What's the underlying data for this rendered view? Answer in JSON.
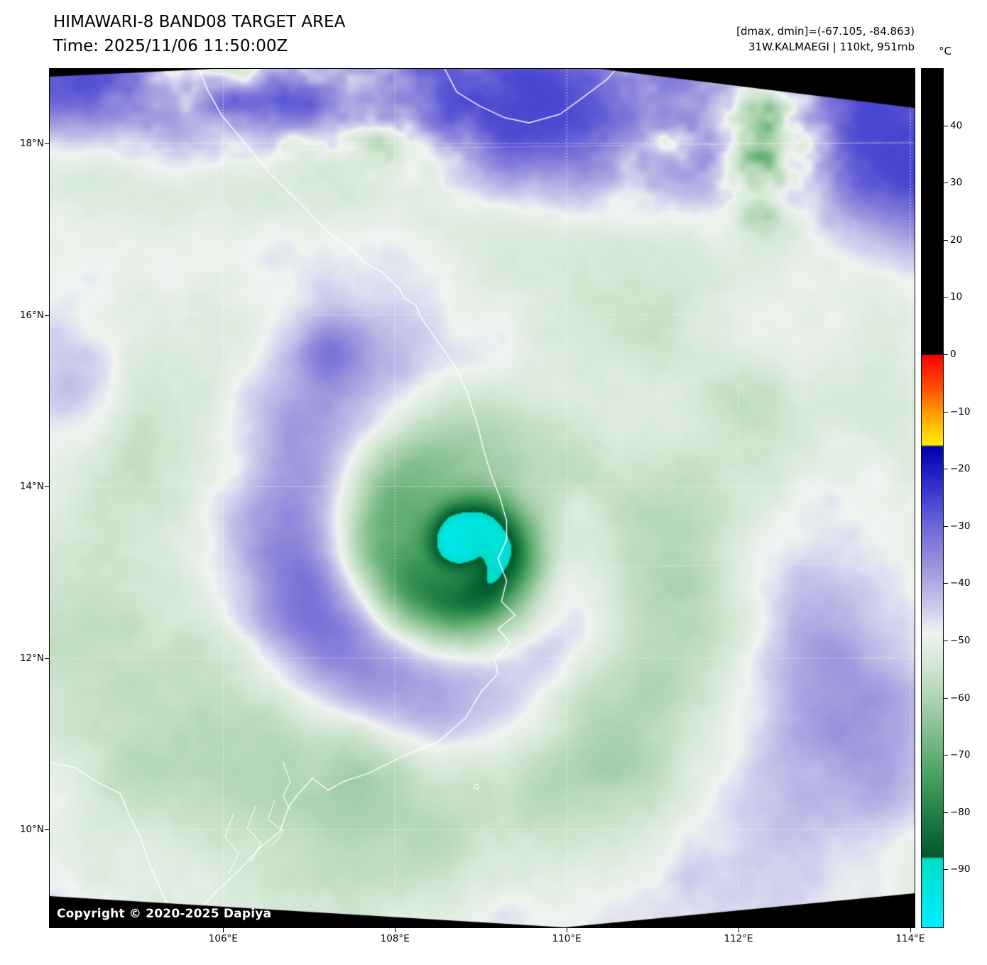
{
  "header": {
    "title": "HIMAWARI-8 BAND08 TARGET AREA",
    "time_label": "Time: 2025/11/06 11:50:00Z",
    "dminmax": "[dmax, dmin]=(-67.105, -84.863)",
    "storm": "31W.KALMAEGI | 110kt, 951mb"
  },
  "axes": {
    "lat_ticks": [
      {
        "label": "18°N",
        "value": 18
      },
      {
        "label": "16°N",
        "value": 16
      },
      {
        "label": "14°N",
        "value": 14
      },
      {
        "label": "12°N",
        "value": 12
      },
      {
        "label": "10°N",
        "value": 10
      }
    ],
    "lon_ticks": [
      {
        "label": "106°E",
        "value": 106
      },
      {
        "label": "108°E",
        "value": 108
      },
      {
        "label": "110°E",
        "value": 110
      },
      {
        "label": "112°E",
        "value": 112
      },
      {
        "label": "114°E",
        "value": 114
      }
    ]
  },
  "colorbar": {
    "unit": "°C",
    "vmax": 50,
    "vmin": -100,
    "ticks": [
      {
        "label": "40",
        "value": 40
      },
      {
        "label": "30",
        "value": 30
      },
      {
        "label": "20",
        "value": 20
      },
      {
        "label": "10",
        "value": 10
      },
      {
        "label": "0",
        "value": 0
      },
      {
        "label": "−10",
        "value": -10
      },
      {
        "label": "−20",
        "value": -20
      },
      {
        "label": "−30",
        "value": -30
      },
      {
        "label": "−40",
        "value": -40
      },
      {
        "label": "−50",
        "value": -50
      },
      {
        "label": "−60",
        "value": -60
      },
      {
        "label": "−70",
        "value": -70
      },
      {
        "label": "−80",
        "value": -80
      },
      {
        "label": "−90",
        "value": -90
      }
    ],
    "palette": [
      {
        "t": 50,
        "c": "#000000"
      },
      {
        "t": 0.05,
        "c": "#000000"
      },
      {
        "t": 0,
        "c": "#fa0000"
      },
      {
        "t": -6,
        "c": "#ff5200"
      },
      {
        "t": -11,
        "c": "#ffaa00"
      },
      {
        "t": -15.7,
        "c": "#ffee00"
      },
      {
        "t": -16,
        "c": "#0000aa"
      },
      {
        "t": -23,
        "c": "#3232cd"
      },
      {
        "t": -30,
        "c": "#6e68d8"
      },
      {
        "t": -38,
        "c": "#a29cdf"
      },
      {
        "t": -45,
        "c": "#d2d2ee"
      },
      {
        "t": -48.5,
        "c": "#f0f4f1"
      },
      {
        "t": -54,
        "c": "#d2e7d3"
      },
      {
        "t": -61,
        "c": "#a6d0ab"
      },
      {
        "t": -68,
        "c": "#73b681"
      },
      {
        "t": -75,
        "c": "#3f9a59"
      },
      {
        "t": -82,
        "c": "#177540"
      },
      {
        "t": -87.7,
        "c": "#00582c"
      },
      {
        "t": -88,
        "c": "#00dcc8"
      },
      {
        "t": -100,
        "c": "#00eeff"
      }
    ]
  },
  "watermark": "Copyright © 2020-2025 Dapiya"
}
